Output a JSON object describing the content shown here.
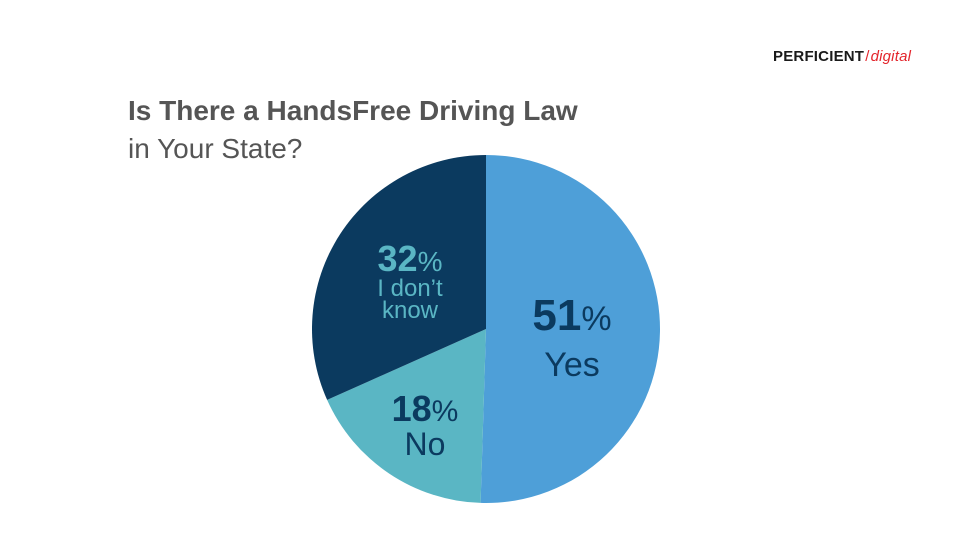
{
  "logo": {
    "brand": "PERFICIENT",
    "slash": "/",
    "suffix": "digital"
  },
  "title": {
    "line1": "Is There a HandsFree Driving Law",
    "line2": "in Your State?"
  },
  "colors": {
    "yes": "#4e9fd8",
    "no": "#5ab6c4",
    "dont_know": "#0b3a5f",
    "label_dark": "#0b3a5f",
    "label_light": "#5ab6c4"
  },
  "chart_data": {
    "type": "pie",
    "title": "Is There a HandsFree Driving Law in Your State?",
    "slices": [
      {
        "label": "Yes",
        "value": 51,
        "unit": "%"
      },
      {
        "label": "No",
        "value": 18,
        "unit": "%"
      },
      {
        "label": "I don't know",
        "value": 32,
        "unit": "%"
      }
    ],
    "label_lines": {
      "Yes": [
        "Yes"
      ],
      "No": [
        "No"
      ],
      "I don't know": [
        "I don’t",
        "know"
      ]
    }
  }
}
